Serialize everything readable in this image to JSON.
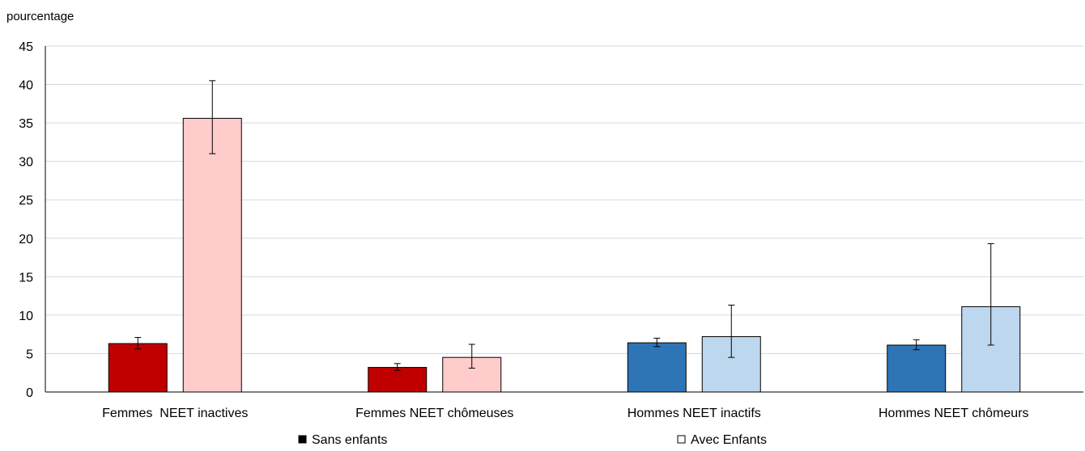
{
  "chart_data": {
    "type": "bar",
    "ylabel": "pourcentage",
    "xlabel": "",
    "ylim": [
      0,
      45
    ],
    "yticks": [
      0,
      5,
      10,
      15,
      20,
      25,
      30,
      35,
      40,
      45
    ],
    "grid": "horizontal",
    "legend_position": "bottom",
    "categories": [
      "Femmes  NEET inactives",
      "Femmes NEET chômeuses",
      "Hommes NEET inactifs",
      "Hommes NEET chômeurs"
    ],
    "series": [
      {
        "name": "Sans enfants",
        "values": [
          6.3,
          3.2,
          6.4,
          6.1
        ],
        "error_low": [
          5.6,
          2.8,
          5.9,
          5.5
        ],
        "error_high": [
          7.1,
          3.7,
          7.0,
          6.8
        ]
      },
      {
        "name": "Avec Enfants",
        "values": [
          35.6,
          4.5,
          7.2,
          11.1
        ],
        "error_low": [
          31.0,
          3.1,
          4.5,
          6.1
        ],
        "error_high": [
          40.5,
          6.2,
          11.3,
          19.3
        ]
      }
    ],
    "colors": {
      "femmes_sans": "#C00000",
      "femmes_avec": "#FFCCCC",
      "hommes_sans": "#2E75B6",
      "hommes_avec": "#BDD7EE",
      "bar_outline": "#000000",
      "gridline": "#D9D9D9",
      "axis": "#000000",
      "error_bar": "#000000",
      "legend_sans_marker": "#000000",
      "legend_avec_marker": "#FFFFFF"
    }
  }
}
